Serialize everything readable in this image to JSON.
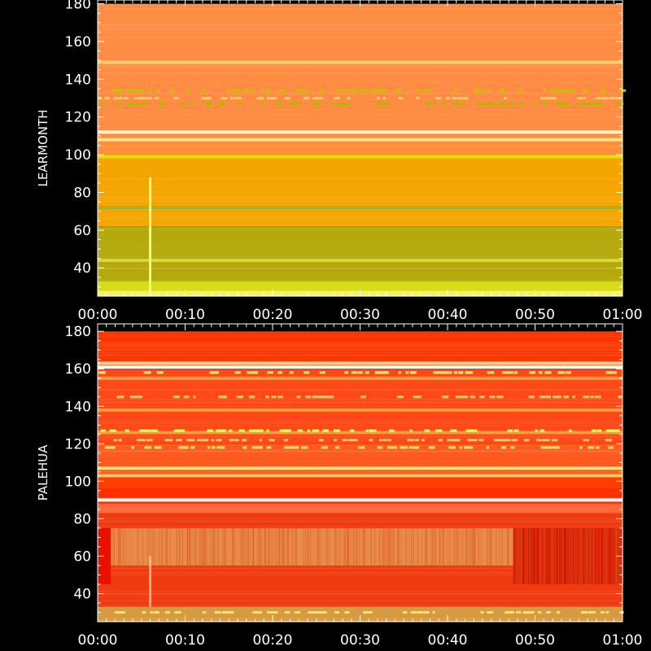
{
  "chart_data": [
    {
      "type": "heatmap",
      "ylabel": "LEARMONTH",
      "xlabel": "",
      "xlim": [
        0,
        60
      ],
      "ylim": [
        25,
        180
      ],
      "yticks": [
        40,
        60,
        80,
        100,
        120,
        140,
        160,
        180
      ],
      "xticks": [
        "00:00",
        "00:10",
        "00:20",
        "00:30",
        "00:40",
        "00:50",
        "01:00"
      ],
      "bands": [
        {
          "from": 25,
          "to": 28,
          "color": "#f2f26a"
        },
        {
          "from": 28,
          "to": 33,
          "color": "#d8dc18"
        },
        {
          "from": 33,
          "to": 62,
          "color": "#b4aa0e"
        },
        {
          "from": 62,
          "to": 100,
          "color": "#f5a500"
        },
        {
          "from": 100,
          "to": 108,
          "color": "#ff8f3a"
        },
        {
          "from": 108,
          "to": 180,
          "color": "#ff8c42"
        }
      ],
      "lines": [
        {
          "f": 44,
          "color": "#d7d640"
        },
        {
          "f": 72,
          "color": "#a9b02a"
        },
        {
          "f": 99,
          "color": "#e8e000"
        },
        {
          "f": 108,
          "color": "#ffe08a"
        },
        {
          "f": 112,
          "color": "#fff7c8"
        },
        {
          "f": 149,
          "color": "#ffd070"
        }
      ],
      "dots": [
        {
          "f": 134,
          "color": "#c8c000"
        },
        {
          "f": 127,
          "color": "#b8b400"
        },
        {
          "f": 130,
          "color": "#ffcf6a"
        }
      ],
      "spikes": [
        {
          "t": 6.0,
          "f_low": 25,
          "f_high": 88,
          "color": "#e8ff80"
        }
      ]
    },
    {
      "type": "heatmap",
      "ylabel": "PALEHUA",
      "xlabel": "",
      "xlim": [
        0,
        60
      ],
      "ylim": [
        25,
        180
      ],
      "yticks": [
        40,
        60,
        80,
        100,
        120,
        140,
        160,
        180
      ],
      "xticks": [
        "00:00",
        "00:10",
        "00:20",
        "00:30",
        "00:40",
        "00:50",
        "01:00"
      ],
      "bands": [
        {
          "from": 25,
          "to": 33,
          "color": "#d89a40"
        },
        {
          "from": 33,
          "to": 83,
          "color": "#f03a10"
        },
        {
          "from": 83,
          "to": 88,
          "color": "#ff6a3a"
        },
        {
          "from": 88,
          "to": 96,
          "color": "#ff2e00"
        },
        {
          "from": 96,
          "to": 104,
          "color": "#ff3d00"
        },
        {
          "from": 104,
          "to": 120,
          "color": "#ff5a20"
        },
        {
          "from": 120,
          "to": 160,
          "color": "#ff4a18"
        },
        {
          "from": 160,
          "to": 180,
          "color": "#ff3600"
        }
      ],
      "patches": [
        {
          "t0": 1.5,
          "t1": 47.5,
          "f0": 55,
          "f1": 75,
          "color": "#e88a4a"
        },
        {
          "t0": 0,
          "t1": 1.5,
          "f0": 45,
          "f1": 75,
          "color": "#e81000"
        },
        {
          "t0": 47.5,
          "t1": 60,
          "f0": 45,
          "f1": 75,
          "color": "#d81000"
        }
      ],
      "lines": [
        {
          "f": 90,
          "color": "#ffffff"
        },
        {
          "f": 103,
          "color": "#ffcc66"
        },
        {
          "f": 107,
          "color": "#ffe27a"
        },
        {
          "f": 161,
          "color": "#ffffff"
        },
        {
          "f": 163,
          "color": "#ffd8a0"
        },
        {
          "f": 155,
          "color": "#ff9a4a"
        },
        {
          "f": 138,
          "color": "#ff9a40"
        },
        {
          "f": 126,
          "color": "#ff9a40"
        }
      ],
      "dots": [
        {
          "f": 158,
          "color": "#ffe070"
        },
        {
          "f": 127,
          "color": "#e6ff5a"
        },
        {
          "f": 122,
          "color": "#ffd060"
        },
        {
          "f": 118,
          "color": "#ffe060"
        },
        {
          "f": 145,
          "color": "#ffc070"
        },
        {
          "f": 30,
          "color": "#e8e870"
        }
      ],
      "spikes": [
        {
          "t": 6.0,
          "f_low": 33,
          "f_high": 60,
          "color": "#ffb080"
        }
      ]
    }
  ]
}
